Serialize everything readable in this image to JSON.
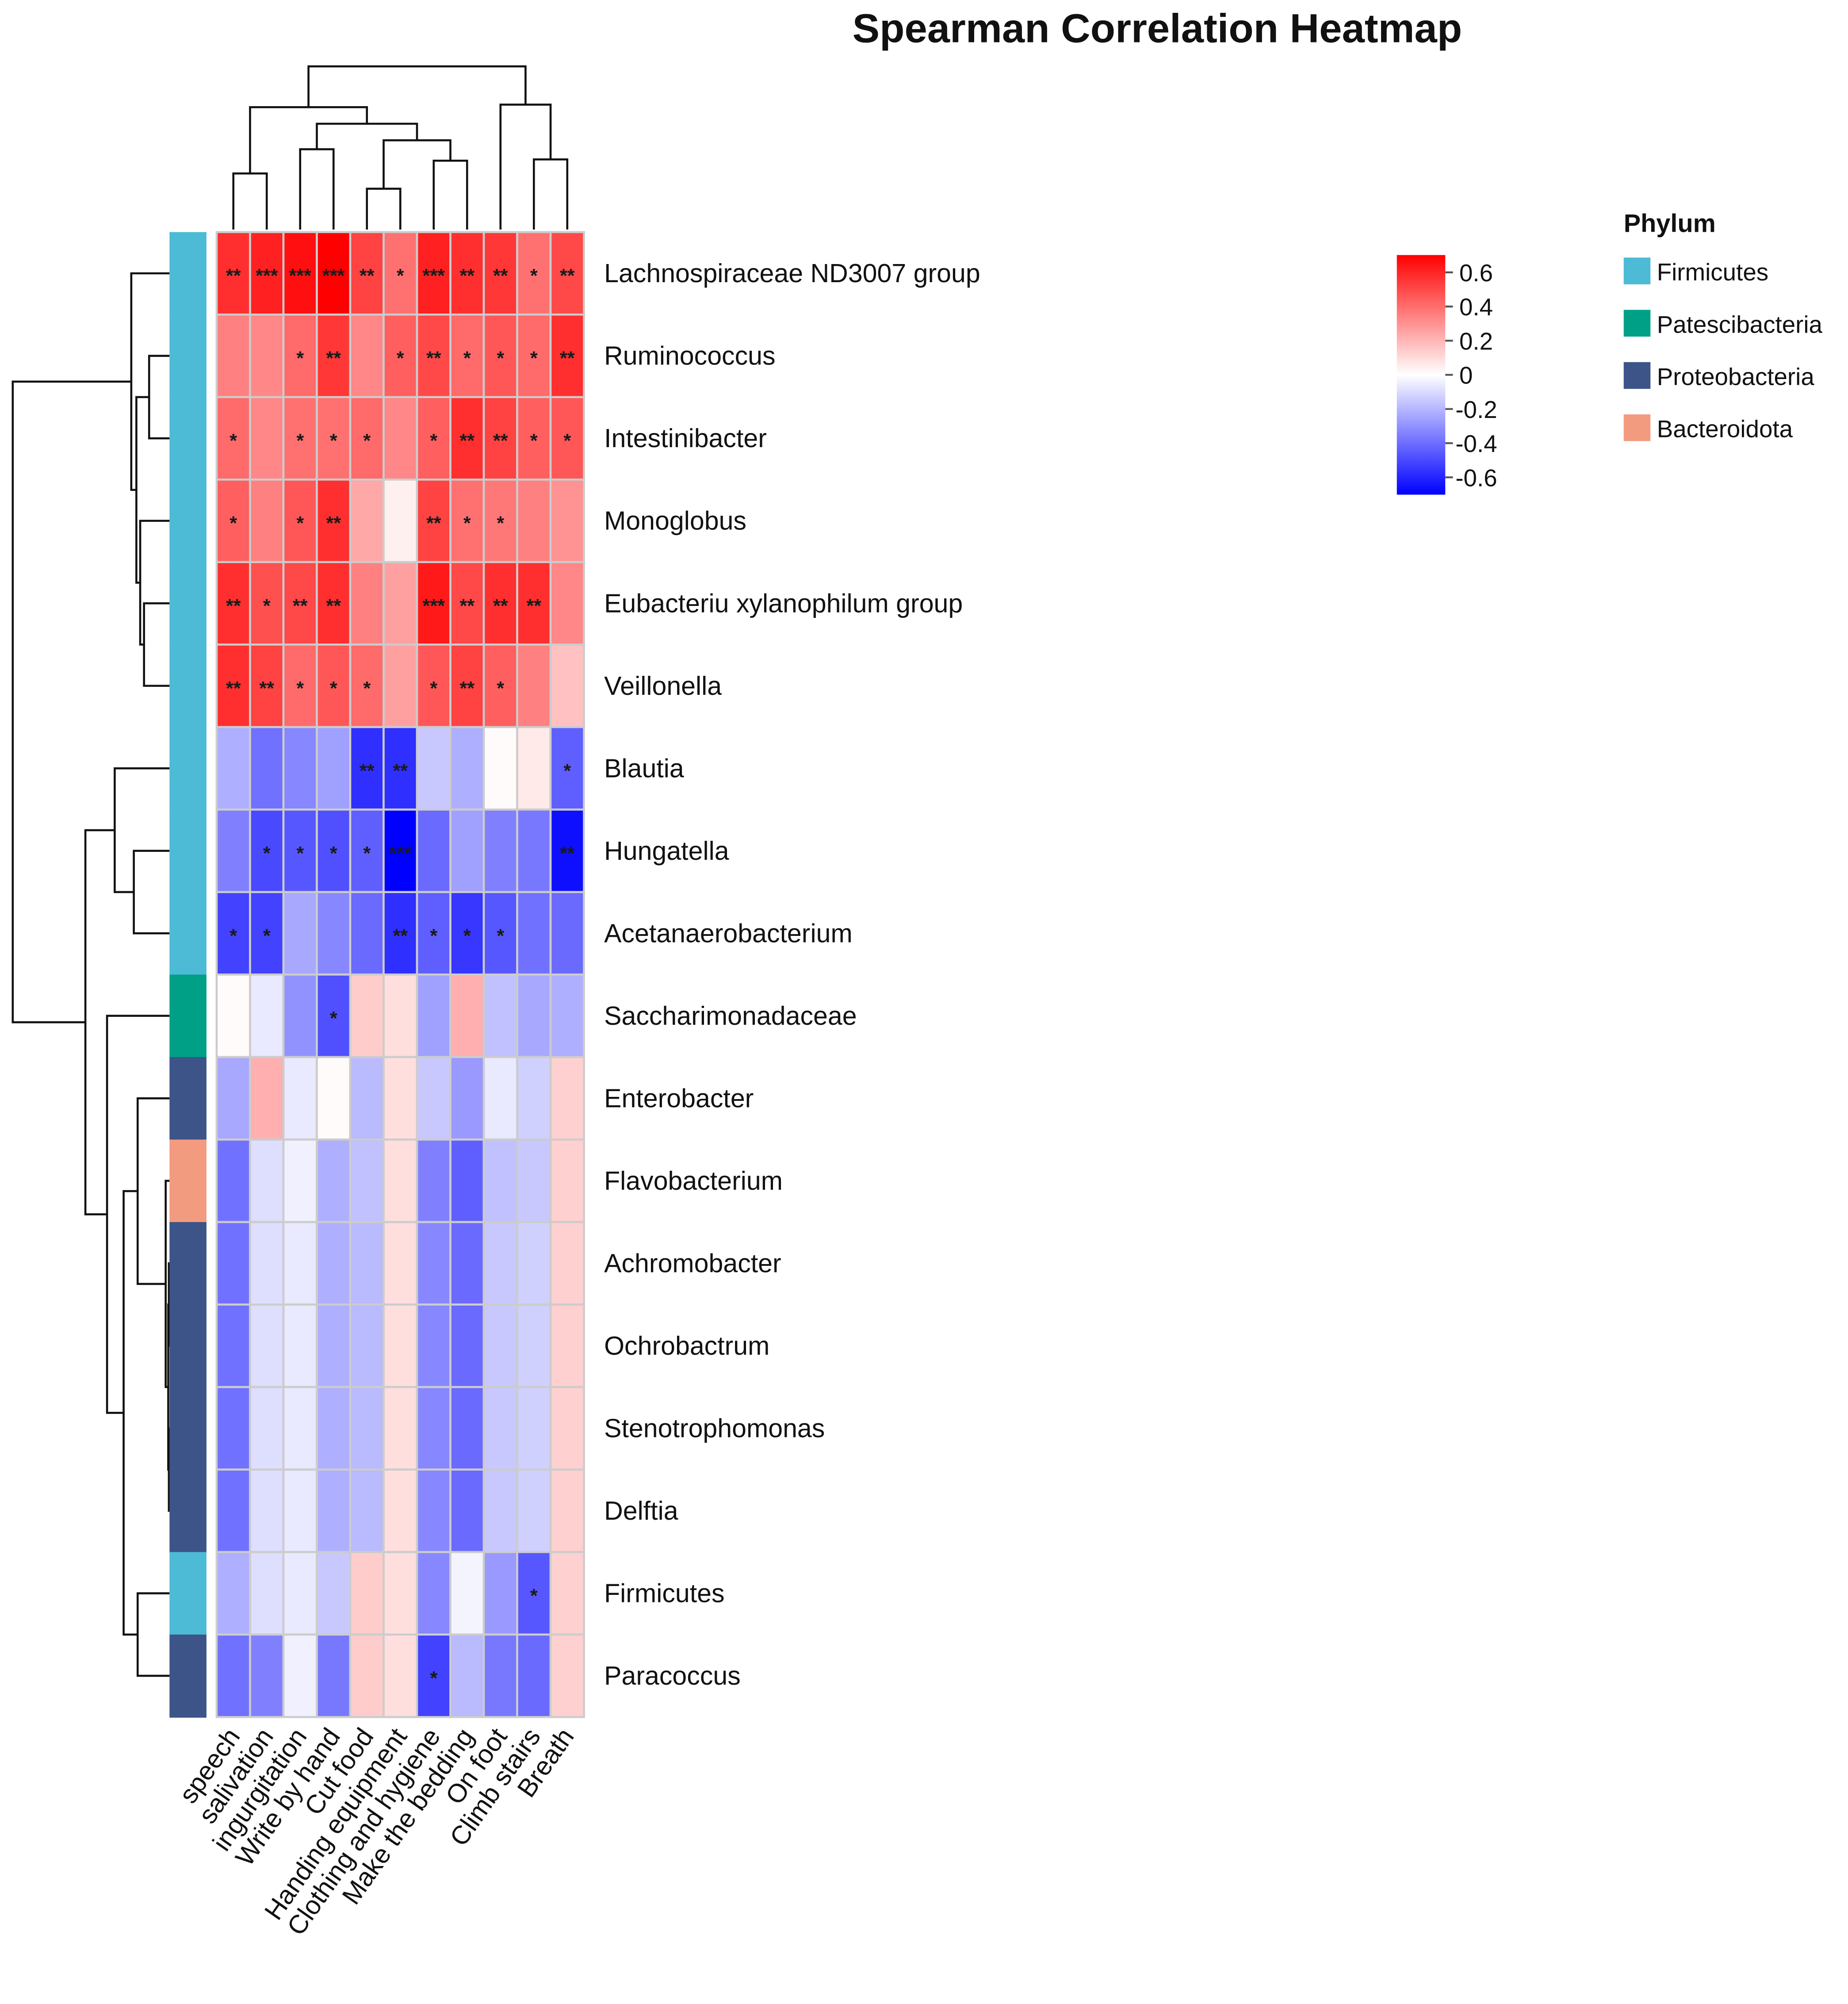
{
  "chart_data": {
    "type": "heatmap",
    "title": "Spearman Correlation Heatmap",
    "rows": [
      "Lachnospiraceae ND3007 group",
      "Ruminococcus",
      "Intestinibacter",
      "Monoglobus",
      "Eubacteriu xylanophilum group",
      "Veillonella",
      "Blautia",
      "Hungatella",
      "Acetanaerobacterium",
      "Saccharimonadaceae",
      "Enterobacter",
      "Flavobacterium",
      "Achromobacter",
      "Ochrobactrum",
      "Stenotrophomonas",
      "Delftia",
      "Firmicutes",
      "Paracoccus"
    ],
    "columns": [
      "speech",
      "salivation",
      "ingurgitation",
      "Write by hand",
      "Cut food",
      "Handing equipment",
      "Clothing and hygiene",
      "Make the bedding",
      "On foot",
      "Climb stairs",
      "Breath"
    ],
    "values": [
      [
        0.57,
        0.61,
        0.66,
        0.7,
        0.52,
        0.39,
        0.61,
        0.57,
        0.55,
        0.39,
        0.5
      ],
      [
        0.35,
        0.33,
        0.41,
        0.55,
        0.33,
        0.44,
        0.5,
        0.41,
        0.46,
        0.41,
        0.57
      ],
      [
        0.41,
        0.33,
        0.39,
        0.39,
        0.41,
        0.33,
        0.44,
        0.57,
        0.52,
        0.44,
        0.46
      ],
      [
        0.44,
        0.35,
        0.46,
        0.57,
        0.24,
        0.04,
        0.52,
        0.39,
        0.37,
        0.35,
        0.3
      ],
      [
        0.57,
        0.48,
        0.5,
        0.57,
        0.35,
        0.26,
        0.63,
        0.5,
        0.57,
        0.57,
        0.33
      ],
      [
        0.57,
        0.52,
        0.41,
        0.46,
        0.41,
        0.26,
        0.46,
        0.52,
        0.44,
        0.35,
        0.17
      ],
      [
        -0.22,
        -0.39,
        -0.33,
        -0.26,
        -0.57,
        -0.57,
        -0.15,
        -0.22,
        0.01,
        0.06,
        -0.44
      ],
      [
        -0.35,
        -0.5,
        -0.46,
        -0.48,
        -0.44,
        -0.7,
        -0.41,
        -0.26,
        -0.35,
        -0.37,
        -0.66
      ],
      [
        -0.52,
        -0.52,
        -0.24,
        -0.33,
        -0.41,
        -0.57,
        -0.44,
        -0.55,
        -0.46,
        -0.39,
        -0.41
      ],
      [
        0.01,
        -0.06,
        -0.3,
        -0.48,
        0.14,
        0.09,
        -0.26,
        0.22,
        -0.17,
        -0.24,
        -0.22
      ],
      [
        -0.24,
        0.22,
        -0.06,
        0.01,
        -0.19,
        0.09,
        -0.15,
        -0.28,
        -0.06,
        -0.13,
        0.13
      ],
      [
        -0.39,
        -0.09,
        -0.04,
        -0.22,
        -0.17,
        0.09,
        -0.35,
        -0.44,
        -0.17,
        -0.15,
        0.13
      ],
      [
        -0.39,
        -0.09,
        -0.06,
        -0.22,
        -0.19,
        0.09,
        -0.33,
        -0.41,
        -0.15,
        -0.13,
        0.13
      ],
      [
        -0.39,
        -0.09,
        -0.06,
        -0.22,
        -0.19,
        0.09,
        -0.33,
        -0.41,
        -0.15,
        -0.13,
        0.13
      ],
      [
        -0.39,
        -0.09,
        -0.06,
        -0.22,
        -0.19,
        0.09,
        -0.33,
        -0.41,
        -0.15,
        -0.13,
        0.13
      ],
      [
        -0.39,
        -0.09,
        -0.06,
        -0.22,
        -0.19,
        0.09,
        -0.33,
        -0.41,
        -0.15,
        -0.13,
        0.13
      ],
      [
        -0.22,
        -0.09,
        -0.06,
        -0.15,
        0.14,
        0.09,
        -0.33,
        -0.03,
        -0.28,
        -0.46,
        0.13
      ],
      [
        -0.39,
        -0.35,
        -0.04,
        -0.37,
        0.14,
        0.09,
        -0.52,
        -0.19,
        -0.37,
        -0.41,
        0.13
      ]
    ],
    "significance": [
      [
        "**",
        "***",
        "***",
        "***",
        "**",
        "*",
        "***",
        "**",
        "**",
        "*",
        "**"
      ],
      [
        "",
        "",
        "*",
        "**",
        "",
        "*",
        "**",
        "*",
        "*",
        "*",
        "**"
      ],
      [
        "*",
        "",
        "*",
        "*",
        "*",
        "",
        "*",
        "**",
        "**",
        "*",
        "*"
      ],
      [
        "*",
        "",
        "*",
        "**",
        "",
        "",
        "**",
        "*",
        "*",
        "",
        ""
      ],
      [
        "**",
        "*",
        "**",
        "**",
        "",
        "",
        "***",
        "**",
        "**",
        "**",
        ""
      ],
      [
        "**",
        "**",
        "*",
        "*",
        "*",
        "",
        "*",
        "**",
        "*",
        "",
        ""
      ],
      [
        "",
        "",
        "",
        "",
        "**",
        "**",
        "",
        "",
        "",
        "",
        "*"
      ],
      [
        "",
        "*",
        "*",
        "*",
        "*",
        "***",
        "",
        "",
        "",
        "",
        "**"
      ],
      [
        "*",
        "*",
        "",
        "",
        "",
        "**",
        "*",
        "*",
        "*",
        "",
        ""
      ],
      [
        "",
        "",
        "",
        "*",
        "",
        "",
        "",
        "",
        "",
        "",
        ""
      ],
      [
        "",
        "",
        "",
        "",
        "",
        "",
        "",
        "",
        "",
        "",
        ""
      ],
      [
        "",
        "",
        "",
        "",
        "",
        "",
        "",
        "",
        "",
        "",
        ""
      ],
      [
        "",
        "",
        "",
        "",
        "",
        "",
        "",
        "",
        "",
        "",
        ""
      ],
      [
        "",
        "",
        "",
        "",
        "",
        "",
        "",
        "",
        "",
        "",
        ""
      ],
      [
        "",
        "",
        "",
        "",
        "",
        "",
        "",
        "",
        "",
        "",
        ""
      ],
      [
        "",
        "",
        "",
        "",
        "",
        "",
        "",
        "",
        "",
        "",
        ""
      ],
      [
        "",
        "",
        "",
        "",
        "",
        "",
        "",
        "",
        "",
        "*",
        ""
      ],
      [
        "",
        "",
        "",
        "",
        "",
        "",
        "*",
        "",
        "",
        "",
        ""
      ]
    ],
    "color_scale": {
      "min": -0.7,
      "max": 0.7,
      "ticks": [
        0.6,
        0.4,
        0.2,
        0,
        -0.2,
        -0.4,
        -0.6
      ],
      "tick_labels": [
        "0.6",
        "0.4",
        "0.2",
        "0",
        "-0.2",
        "-0.4",
        "-0.6"
      ],
      "colors": {
        "low": "#0000FF",
        "mid": "#FFFFFF",
        "high": "#FF0000"
      }
    },
    "row_annotation": {
      "title": "Phylum",
      "values": [
        "Firmicutes",
        "Firmicutes",
        "Firmicutes",
        "Firmicutes",
        "Firmicutes",
        "Firmicutes",
        "Firmicutes",
        "Firmicutes",
        "Firmicutes",
        "Patescibacteria",
        "Proteobacteria",
        "Bacteroidota",
        "Proteobacteria",
        "Proteobacteria",
        "Proteobacteria",
        "Proteobacteria",
        "Firmicutes",
        "Proteobacteria"
      ],
      "legend": [
        {
          "name": "Firmicutes",
          "color": "#4DBBD5"
        },
        {
          "name": "Patescibacteria",
          "color": "#00A087"
        },
        {
          "name": "Proteobacteria",
          "color": "#3C5488"
        },
        {
          "name": "Bacteroidota",
          "color": "#F39B7F"
        }
      ]
    },
    "grid_color": "#CCCCCC",
    "row_dendrogram": true,
    "column_dendrogram": true,
    "legend_placement": "right"
  }
}
